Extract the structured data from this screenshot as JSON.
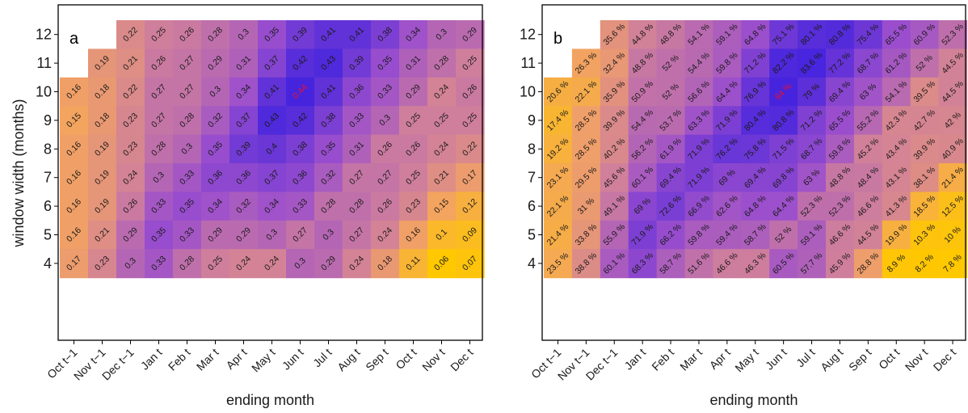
{
  "chart_data": [
    {
      "type": "heatmap",
      "panel_label": "a",
      "xlabel": "ending month",
      "ylabel": "window width (months)",
      "x_categories": [
        "Oct t−1",
        "Nov t−1",
        "Dec t−1",
        "Jan t",
        "Feb t",
        "Mar t",
        "Apr t",
        "May t",
        "Jun t",
        "Jul t",
        "Aug t",
        "Sep t",
        "Oct t",
        "Nov t",
        "Dec t"
      ],
      "y_categories": [
        "4",
        "5",
        "6",
        "7",
        "8",
        "9",
        "10",
        "11",
        "12"
      ],
      "color_range": [
        0.06,
        0.44
      ],
      "highlight": {
        "row": "10",
        "col": "Jun t",
        "text_color": "#e8112d"
      },
      "rows": [
        {
          "y": "12",
          "values": [
            null,
            null,
            0.22,
            0.25,
            0.26,
            0.28,
            0.3,
            0.35,
            0.39,
            0.41,
            0.41,
            0.38,
            0.34,
            0.3,
            0.29
          ],
          "labels": [
            null,
            null,
            "0.22",
            "0.25",
            "0.26",
            "0.28",
            "0.3",
            "0.35",
            "0.39",
            "0.41",
            "0.41",
            "0.38",
            "0.34",
            "0.3",
            "0.29"
          ]
        },
        {
          "y": "11",
          "values": [
            null,
            0.19,
            0.21,
            0.26,
            0.27,
            0.29,
            0.31,
            0.37,
            0.42,
            0.43,
            0.39,
            0.35,
            0.31,
            0.28,
            0.25
          ],
          "labels": [
            null,
            "0.19",
            "0.21",
            "0.26",
            "0.27",
            "0.29",
            "0.31",
            "0.37",
            "0.42",
            "0.43",
            "0.39",
            "0.35",
            "0.31",
            "0.28",
            "0.25"
          ]
        },
        {
          "y": "10",
          "values": [
            0.16,
            0.18,
            0.22,
            0.27,
            0.27,
            0.3,
            0.34,
            0.41,
            0.44,
            0.41,
            0.36,
            0.33,
            0.29,
            0.24,
            0.26
          ],
          "labels": [
            "0.16",
            "0.18",
            "0.22",
            "0.27",
            "0.27",
            "0.3",
            "0.34",
            "0.41",
            "0.44",
            "0.41",
            "0.36",
            "0.33",
            "0.29",
            "0.24",
            "0.26"
          ]
        },
        {
          "y": "9",
          "values": [
            0.15,
            0.18,
            0.23,
            0.27,
            0.28,
            0.32,
            0.37,
            0.43,
            0.42,
            0.38,
            0.33,
            0.3,
            0.25,
            0.25,
            0.25
          ],
          "labels": [
            "0.15",
            "0.18",
            "0.23",
            "0.27",
            "0.28",
            "0.32",
            "0.37",
            "0.43",
            "0.42",
            "0.38",
            "0.33",
            "0.3",
            "0.25",
            "0.25",
            "0.25"
          ]
        },
        {
          "y": "8",
          "values": [
            0.16,
            0.19,
            0.23,
            0.28,
            0.3,
            0.35,
            0.39,
            0.4,
            0.38,
            0.35,
            0.31,
            0.26,
            0.26,
            0.24,
            0.22
          ],
          "labels": [
            "0.16",
            "0.19",
            "0.23",
            "0.28",
            "0.3",
            "0.35",
            "0.39",
            "0.4",
            "0.38",
            "0.35",
            "0.31",
            "0.26",
            "0.26",
            "0.24",
            "0.22"
          ]
        },
        {
          "y": "7",
          "values": [
            0.16,
            0.19,
            0.24,
            0.3,
            0.33,
            0.36,
            0.36,
            0.37,
            0.36,
            0.32,
            0.27,
            0.27,
            0.25,
            0.21,
            0.17
          ],
          "labels": [
            "0.16",
            "0.19",
            "0.24",
            "0.3",
            "0.33",
            "0.36",
            "0.36",
            "0.37",
            "0.36",
            "0.32",
            "0.27",
            "0.27",
            "0.25",
            "0.21",
            "0.17"
          ]
        },
        {
          "y": "6",
          "values": [
            0.16,
            0.19,
            0.26,
            0.33,
            0.35,
            0.34,
            0.32,
            0.34,
            0.33,
            0.28,
            0.28,
            0.26,
            0.23,
            0.15,
            0.12
          ],
          "labels": [
            "0.16",
            "0.19",
            "0.26",
            "0.33",
            "0.35",
            "0.34",
            "0.32",
            "0.34",
            "0.33",
            "0.28",
            "0.28",
            "0.26",
            "0.23",
            "0.15",
            "0.12"
          ]
        },
        {
          "y": "5",
          "values": [
            0.16,
            0.21,
            0.29,
            0.35,
            0.33,
            0.29,
            0.29,
            0.3,
            0.27,
            0.3,
            0.27,
            0.24,
            0.16,
            0.1,
            0.09
          ],
          "labels": [
            "0.16",
            "0.21",
            "0.29",
            "0.35",
            "0.33",
            "0.29",
            "0.29",
            "0.3",
            "0.27",
            "0.3",
            "0.27",
            "0.24",
            "0.16",
            "0.1",
            "0.09"
          ]
        },
        {
          "y": "4",
          "values": [
            0.17,
            0.23,
            0.3,
            0.33,
            0.28,
            0.25,
            0.24,
            0.24,
            0.3,
            0.29,
            0.24,
            0.18,
            0.11,
            0.06,
            0.07
          ],
          "labels": [
            "0.17",
            "0.23",
            "0.3",
            "0.33",
            "0.28",
            "0.25",
            "0.24",
            "0.24",
            "0.3",
            "0.29",
            "0.24",
            "0.18",
            "0.11",
            "0.06",
            "0.07"
          ]
        }
      ]
    },
    {
      "type": "heatmap",
      "panel_label": "b",
      "xlabel": "ending month",
      "ylabel": "",
      "x_categories": [
        "Oct t−1",
        "Nov t−1",
        "Dec t−1",
        "Jan t",
        "Feb t",
        "Mar t",
        "Apr t",
        "May t",
        "Jun t",
        "Jul t",
        "Aug t",
        "Sep t",
        "Oct t",
        "Nov t",
        "Dec t"
      ],
      "y_categories": [
        "4",
        "5",
        "6",
        "7",
        "8",
        "9",
        "10",
        "11",
        "12"
      ],
      "color_range": [
        7.8,
        84
      ],
      "highlight": {
        "row": "10",
        "col": "Jun t",
        "text_color": "#e8112d"
      },
      "rows": [
        {
          "y": "12",
          "values": [
            null,
            null,
            35.6,
            44.8,
            48.8,
            54.1,
            59.1,
            64.8,
            75.1,
            80.1,
            80.8,
            75.4,
            65.5,
            60.9,
            52.3
          ],
          "labels": [
            null,
            null,
            "35.6 %",
            "44.8 %",
            "48.8 %",
            "54.1 %",
            "59.1 %",
            "64.8 %",
            "75.1 %",
            "80.1 %",
            "80.8 %",
            "75.4 %",
            "65.5 %",
            "60.9 %",
            "52.3 %"
          ]
        },
        {
          "y": "11",
          "values": [
            null,
            26.3,
            32.4,
            48.8,
            52,
            54.4,
            59.8,
            71.2,
            82.2,
            83.6,
            77.2,
            68.7,
            61.2,
            52,
            44.5
          ],
          "labels": [
            null,
            "26.3 %",
            "32.4 %",
            "48.8 %",
            "52 %",
            "54.4 %",
            "59.8 %",
            "71.2 %",
            "82.2 %",
            "83.6 %",
            "77.2 %",
            "68.7 %",
            "61.2 %",
            "52 %",
            "44.5 %"
          ]
        },
        {
          "y": "10",
          "values": [
            20.6,
            22.1,
            35.9,
            50.9,
            52,
            56.6,
            64.4,
            76.9,
            84,
            79,
            69.4,
            63,
            54.1,
            39.5,
            44.5
          ],
          "labels": [
            "20.6 %",
            "22.1 %",
            "35.9 %",
            "50.9 %",
            "52 %",
            "56.6 %",
            "64.4 %",
            "76.9 %",
            "84 %",
            "79 %",
            "69.4 %",
            "63 %",
            "54.1 %",
            "39.5 %",
            "44.5 %"
          ]
        },
        {
          "y": "9",
          "values": [
            17.4,
            28.5,
            39.9,
            54.4,
            53.7,
            63.3,
            71.9,
            80.4,
            80.8,
            71.2,
            65.5,
            55.2,
            42.3,
            42.7,
            42
          ],
          "labels": [
            "17.4 %",
            "28.5 %",
            "39.9 %",
            "54.4 %",
            "53.7 %",
            "63.3 %",
            "71.9 %",
            "80.4 %",
            "80.8 %",
            "71.2 %",
            "65.5 %",
            "55.2 %",
            "42.3 %",
            "42.7 %",
            "42 %"
          ]
        },
        {
          "y": "8",
          "values": [
            19.2,
            28.5,
            40.2,
            56.2,
            61.9,
            71.9,
            76.2,
            75.8,
            71.5,
            68.7,
            59.8,
            45.2,
            43.4,
            39.9,
            40.9
          ],
          "labels": [
            "19.2 %",
            "28.5 %",
            "40.2 %",
            "56.2 %",
            "61.9 %",
            "71.9 %",
            "76.2 %",
            "75.8 %",
            "71.5 %",
            "68.7 %",
            "59.8 %",
            "45.2 %",
            "43.4 %",
            "39.9 %",
            "40.9 %"
          ]
        },
        {
          "y": "7",
          "values": [
            23.1,
            29.5,
            45.6,
            60.1,
            69.4,
            71.9,
            69,
            69.4,
            69.8,
            63,
            48.8,
            48.4,
            43.1,
            38.1,
            21.4
          ],
          "labels": [
            "23.1 %",
            "29.5 %",
            "45.6 %",
            "60.1 %",
            "69.4 %",
            "71.9 %",
            "69 %",
            "69.4 %",
            "69.8 %",
            "63 %",
            "48.8 %",
            "48.4 %",
            "43.1 %",
            "38.1 %",
            "21.4 %"
          ]
        },
        {
          "y": "6",
          "values": [
            22.1,
            31,
            49.1,
            69,
            72.6,
            66.9,
            62.6,
            64.8,
            64.4,
            52.3,
            52.3,
            46.6,
            41.3,
            18.5,
            12.5
          ],
          "labels": [
            "22.1 %",
            "31 %",
            "49.1 %",
            "69 %",
            "72.6 %",
            "66.9 %",
            "62.6 %",
            "64.8 %",
            "64.4 %",
            "52.3 %",
            "52.3 %",
            "46.6 %",
            "41.3 %",
            "18.5 %",
            "12.5 %"
          ]
        },
        {
          "y": "5",
          "values": [
            21.4,
            33.8,
            55.9,
            71.9,
            66.2,
            59.8,
            59.4,
            58.7,
            52,
            59.1,
            46.6,
            44.5,
            19.9,
            10.3,
            10
          ],
          "labels": [
            "21.4 %",
            "33.8 %",
            "55.9 %",
            "71.9 %",
            "66.2 %",
            "59.8 %",
            "59.4 %",
            "58.7 %",
            "52 %",
            "59.1 %",
            "46.6 %",
            "44.5 %",
            "19.9 %",
            "10.3 %",
            "10 %"
          ]
        },
        {
          "y": "4",
          "values": [
            23.5,
            38.8,
            60.1,
            68.3,
            58.7,
            51.6,
            46.6,
            46.3,
            60.5,
            57.7,
            45.9,
            28.8,
            8.9,
            8.2,
            7.8
          ],
          "labels": [
            "23.5 %",
            "38.8 %",
            "60.1 %",
            "68.3 %",
            "58.7 %",
            "51.6 %",
            "46.6 %",
            "46.3 %",
            "60.5 %",
            "57.7 %",
            "45.9 %",
            "28.8 %",
            "8.9 %",
            "8.2 %",
            "7.8 %"
          ]
        }
      ]
    }
  ],
  "colors": {
    "scale_low": "#ffc800",
    "scale_mid_low": "#f2a264",
    "scale_mid": "#cf7f9b",
    "scale_mid_high": "#9c4fcc",
    "scale_high": "#4624de",
    "frame": "#000000",
    "text": "#1a1a1a",
    "highlight_text": "#e8112d"
  }
}
